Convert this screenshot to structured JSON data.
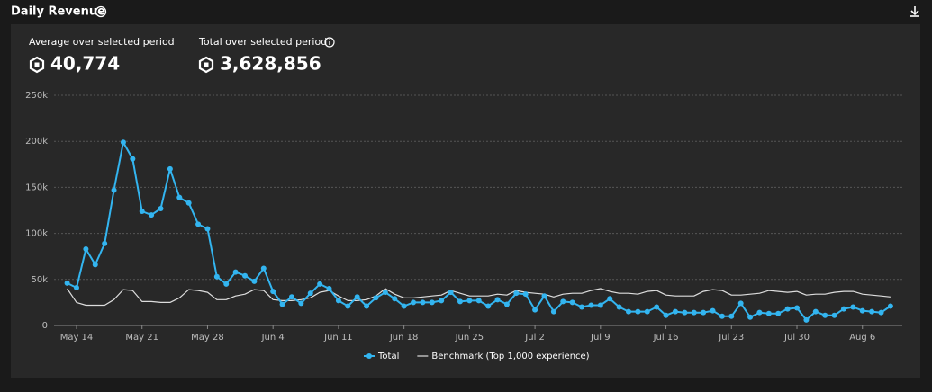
{
  "header": {
    "title": "Daily Revenue"
  },
  "stats": [
    {
      "label": "Average over selected period",
      "value": "40,774"
    },
    {
      "label": "Total over selected period",
      "value": "3,628,856"
    }
  ],
  "chart_data": {
    "type": "line",
    "categories": [
      null,
      "May 14",
      null,
      null,
      null,
      null,
      null,
      null,
      "May 21",
      null,
      null,
      null,
      null,
      null,
      null,
      "May 28",
      null,
      null,
      null,
      null,
      null,
      null,
      "Jun 4",
      null,
      null,
      null,
      null,
      null,
      null,
      "Jun 11",
      null,
      null,
      null,
      null,
      null,
      null,
      "Jun 18",
      null,
      null,
      null,
      null,
      null,
      null,
      "Jun 25",
      null,
      null,
      null,
      null,
      null,
      null,
      "Jul 2",
      null,
      null,
      null,
      null,
      null,
      null,
      "Jul 9",
      null,
      null,
      null,
      null,
      null,
      null,
      "Jul 16",
      null,
      null,
      null,
      null,
      null,
      null,
      "Jul 23",
      null,
      null,
      null,
      null,
      null,
      null,
      "Jul 30",
      null,
      null,
      null,
      null,
      null,
      null,
      "Aug 6",
      null,
      null,
      null
    ],
    "series": [
      {
        "name": "Total",
        "color": "#33b5f0",
        "markers": true,
        "values": [
          46000,
          41000,
          83000,
          66000,
          89000,
          147000,
          199000,
          181000,
          124000,
          120000,
          127000,
          170000,
          139000,
          133000,
          110000,
          105000,
          53000,
          45000,
          58000,
          54000,
          48000,
          62000,
          37000,
          23000,
          31000,
          24000,
          35000,
          45000,
          40000,
          27000,
          21000,
          31000,
          21000,
          30000,
          36000,
          29000,
          21000,
          25000,
          25000,
          25000,
          27000,
          36000,
          26000,
          27000,
          27000,
          21000,
          28000,
          23000,
          35000,
          34000,
          17000,
          32000,
          15000,
          26000,
          25000,
          20000,
          22000,
          22000,
          29000,
          20000,
          15000,
          15000,
          15000,
          20000,
          11000,
          15000,
          14000,
          14000,
          14000,
          16000,
          10000,
          10000,
          24000,
          9000,
          14000,
          13000,
          13000,
          18000,
          19000,
          6000,
          15000,
          11000,
          11000,
          18000,
          20000,
          16000,
          15000,
          14000,
          21000
        ]
      },
      {
        "name": "Benchmark (Top 1,000 experience)",
        "color": "#dddddd",
        "markers": false,
        "values": [
          40000,
          25000,
          22000,
          22000,
          22000,
          28000,
          39000,
          38000,
          26000,
          26000,
          25000,
          25000,
          30000,
          39000,
          38000,
          36000,
          28000,
          28000,
          32000,
          34000,
          39000,
          38000,
          28000,
          27000,
          27000,
          28000,
          30000,
          36000,
          38000,
          32000,
          27000,
          27000,
          28000,
          32000,
          40000,
          34000,
          30000,
          30000,
          31000,
          32000,
          33000,
          38000,
          35000,
          32000,
          32000,
          32000,
          34000,
          33000,
          38000,
          36000,
          35000,
          34000,
          31000,
          34000,
          35000,
          35000,
          38000,
          40000,
          37000,
          35000,
          35000,
          34000,
          37000,
          38000,
          33000,
          32000,
          32000,
          32000,
          37000,
          39000,
          38000,
          33000,
          33000,
          34000,
          35000,
          38000,
          37000,
          36000,
          37000,
          33000,
          34000,
          34000,
          36000,
          37000,
          37000,
          34000,
          33000,
          32000,
          31000
        ]
      }
    ],
    "ylim": [
      0,
      250000
    ],
    "yticks": [
      0,
      {
        "value": 50000,
        "label": "50k"
      },
      {
        "value": 100000,
        "label": "100k"
      },
      {
        "value": 150000,
        "label": "150k"
      },
      {
        "value": 200000,
        "label": "200k"
      },
      {
        "value": 250000,
        "label": "250k"
      }
    ],
    "grid": true
  }
}
